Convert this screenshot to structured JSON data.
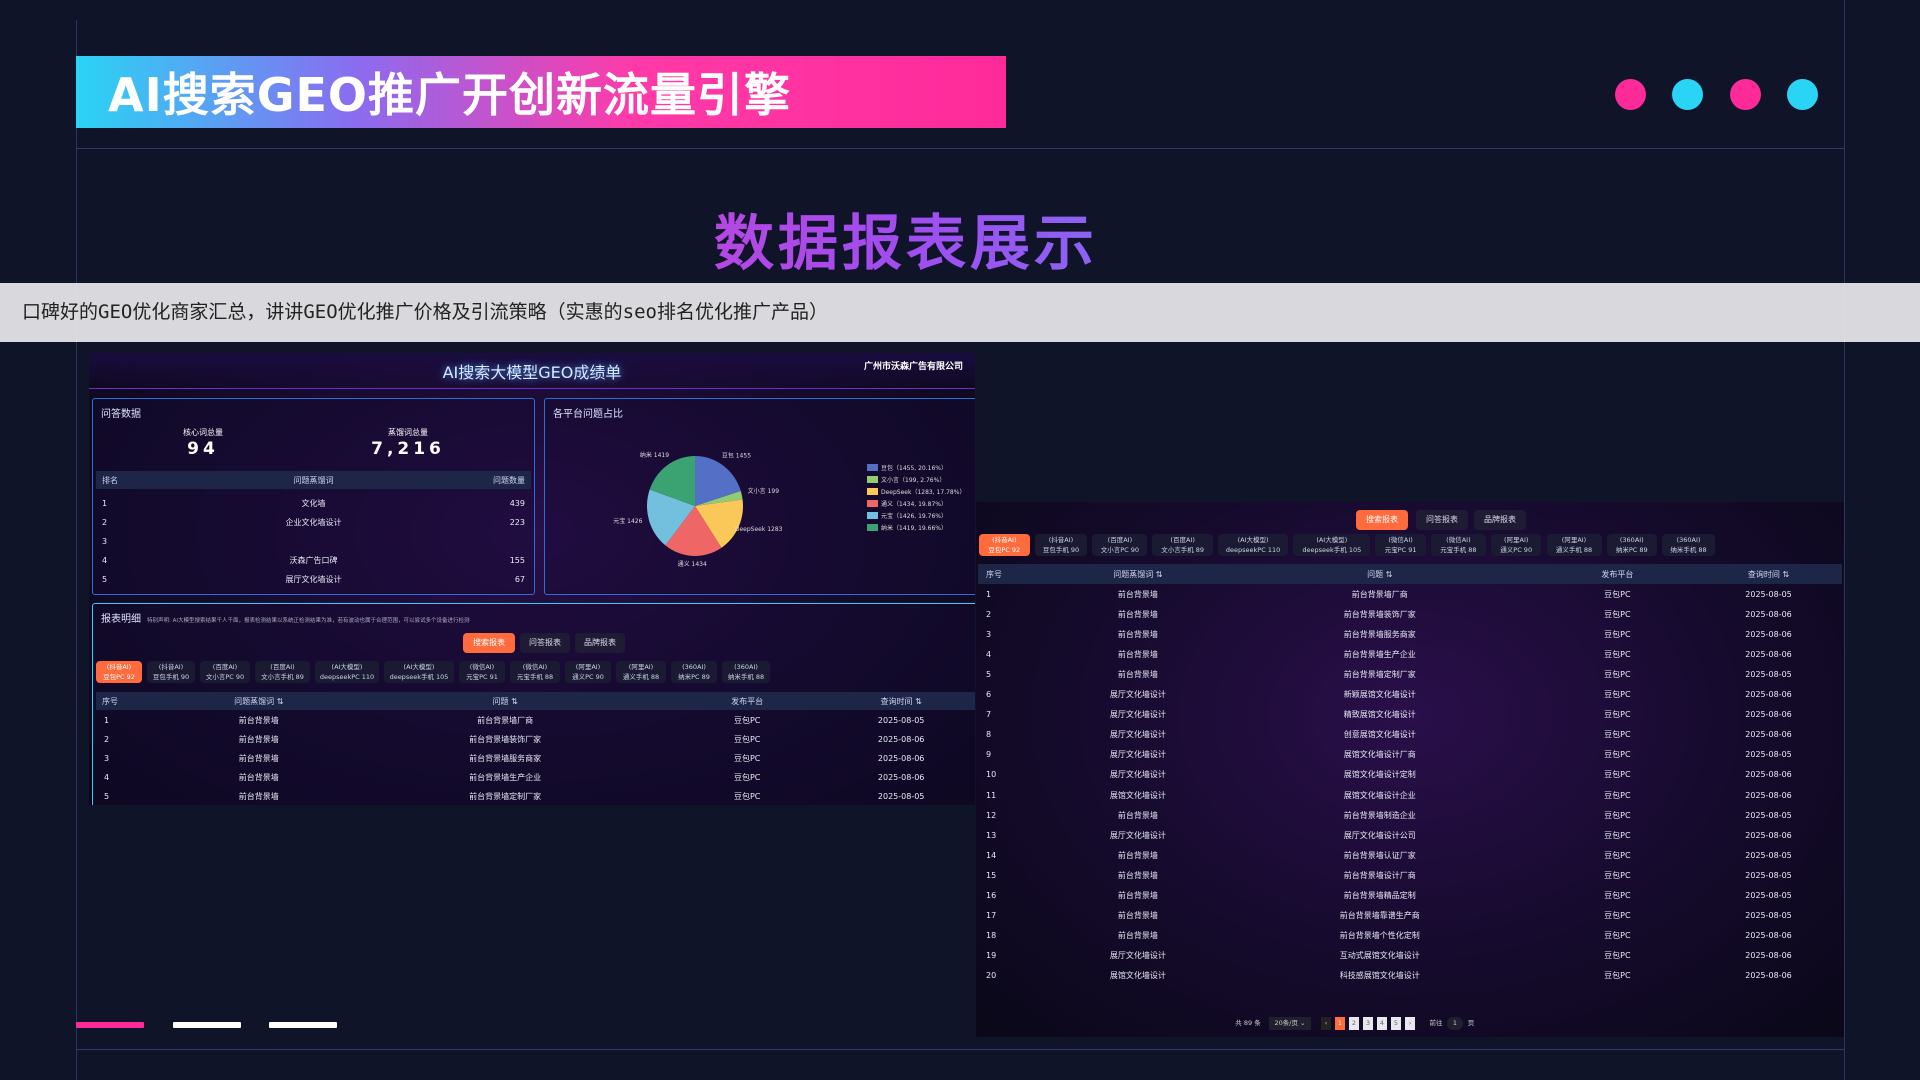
{
  "slide": {
    "title": "AI搜索GEO推广开创新流量引擎",
    "heading": "数据报表展示",
    "dot_colors": [
      "#ff2a9a",
      "#2ad4f5",
      "#ff2a9a",
      "#2ad4f5"
    ],
    "accent": "#ff6b3d"
  },
  "overlay": {
    "text": "口碑好的GEO优化商家汇总，讲讲GEO优化推广价格及引流策略（实惠的seo排名优化推广产品）"
  },
  "dashboard": {
    "title": "AI搜索大模型GEO成绩单",
    "company": "广州市沃森广告有限公司",
    "qa": {
      "title": "问答数据",
      "stat1_label": "核心词总量",
      "stat1_value": "94",
      "stat2_label": "蒸馏词总量",
      "stat2_value": "7,216",
      "columns": [
        "排名",
        "问题蒸馏词",
        "问题数量"
      ],
      "rows": [
        [
          "1",
          "文化墙",
          "439"
        ],
        [
          "2",
          "企业文化墙设计",
          "223"
        ],
        [
          "3",
          "",
          ""
        ],
        [
          "4",
          "沃森广告口碑",
          "155"
        ],
        [
          "5",
          "展厅文化墙设计",
          "67"
        ]
      ]
    },
    "pie": {
      "title": "各平台问题占比",
      "slices": [
        {
          "name": "豆包",
          "value": 1455,
          "pct": "20.16%",
          "color": "#5470c6"
        },
        {
          "name": "文小言",
          "value": 199,
          "pct": "2.76%",
          "color": "#91cc75"
        },
        {
          "name": "DeepSeek",
          "value": 1283,
          "pct": "17.78%",
          "color": "#fac858"
        },
        {
          "name": "通义",
          "value": 1434,
          "pct": "19.87%",
          "color": "#ee6666"
        },
        {
          "name": "元宝",
          "value": 1426,
          "pct": "19.76%",
          "color": "#73c0de"
        },
        {
          "name": "纳米",
          "value": 1419,
          "pct": "19.66%",
          "color": "#3ba272"
        }
      ]
    },
    "report": {
      "title": "报表明细",
      "note": "特别声明: AI大模型搜索结果千人千面，报表检测结果以系统正检测结果为准，若有波动也属于合理范围，可以尝试多个设备进行检测",
      "tabs": [
        "搜索报表",
        "问答报表",
        "品牌报表"
      ],
      "chips": [
        [
          "(抖音AI)",
          "豆包PC 92"
        ],
        [
          "(抖音AI)",
          "豆包手机 90"
        ],
        [
          "(百度AI)",
          "文小言PC 90"
        ],
        [
          "(百度AI)",
          "文小言手机 89"
        ],
        [
          "(AI大模型)",
          "deepseekPC 110"
        ],
        [
          "(AI大模型)",
          "deepseek手机 105"
        ],
        [
          "(微信AI)",
          "元宝PC 91"
        ],
        [
          "(微信AI)",
          "元宝手机 88"
        ],
        [
          "(阿里AI)",
          "通义PC 90"
        ],
        [
          "(阿里AI)",
          "通义手机 88"
        ],
        [
          "(360AI)",
          "纳米PC 89"
        ],
        [
          "(360AI)",
          "纳米手机 88"
        ]
      ],
      "columns": [
        "序号",
        "问题蒸馏词 ⇅",
        "问题 ⇅",
        "发布平台",
        "查询时间 ⇅"
      ],
      "rows": [
        [
          "1",
          "前台背景墙",
          "前台背景墙厂商",
          "豆包PC",
          "2025-08-05"
        ],
        [
          "2",
          "前台背景墙",
          "前台背景墙装饰厂家",
          "豆包PC",
          "2025-08-06"
        ],
        [
          "3",
          "前台背景墙",
          "前台背景墙服务商家",
          "豆包PC",
          "2025-08-06"
        ],
        [
          "4",
          "前台背景墙",
          "前台背景墙生产企业",
          "豆包PC",
          "2025-08-06"
        ],
        [
          "5",
          "前台背景墙",
          "前台背景墙定制厂家",
          "豆包PC",
          "2025-08-05"
        ],
        [
          "6",
          "展厅文化墙设计",
          "新颖展馆文化墙设计",
          "豆包PC",
          "2025-08-06"
        ],
        [
          "7",
          "展厅文化墙设计",
          "精致展馆文化墙设计",
          "豆包PC",
          "2025-08-06"
        ],
        [
          "8",
          "展厅文化墙设计",
          "创意展馆文化墙设计",
          "豆包PC",
          "2025-08-06"
        ],
        [
          "9",
          "展厅文化墙设计",
          "展馆文化墙设计厂商",
          "豆包PC",
          "2025-08-05"
        ],
        [
          "10",
          "展厅文化墙设计",
          "展馆文化墙设计定制",
          "豆包PC",
          "2025-08-06"
        ],
        [
          "11",
          "展馆文化墙设计",
          "展馆文化墙设计企业",
          "豆包PC",
          "2025-08-06"
        ],
        [
          "12",
          "前台背景墙",
          "前台背景墙制造企业",
          "豆包PC",
          "2025-08-05"
        ],
        [
          "13",
          "展厅文化墙设计",
          "展厅文化墙设计公司",
          "豆包PC",
          "2025-08-06"
        ],
        [
          "14",
          "前台背景墙",
          "前台背景墙认证厂家",
          "豆包PC",
          "2025-08-05"
        ],
        [
          "15",
          "前台背景墙",
          "前台背景墙设计厂商",
          "豆包PC",
          "2025-08-05"
        ],
        [
          "16",
          "前台背景墙",
          "前台背景墙精品定制",
          "豆包PC",
          "2025-08-05"
        ],
        [
          "17",
          "前台背景墙",
          "前台背景墙靠谱生产商",
          "豆包PC",
          "2025-08-05"
        ],
        [
          "18",
          "前台背景墙",
          "前台背景墙个性化定制",
          "豆包PC",
          "2025-08-06"
        ],
        [
          "19",
          "展厅文化墙设计",
          "互动式展馆文化墙设计",
          "豆包PC",
          "2025-08-06"
        ],
        [
          "20",
          "展馆文化墙设计",
          "科技感展馆文化墙设计",
          "豆包PC",
          "2025-08-06"
        ]
      ],
      "pagination": {
        "total": "共 89 条",
        "page_size": "20条/页",
        "pages": [
          "1",
          "2",
          "3",
          "4",
          "5"
        ],
        "current": "1",
        "goto_label": "前往",
        "goto_value": "1",
        "page_unit": "页"
      }
    }
  }
}
